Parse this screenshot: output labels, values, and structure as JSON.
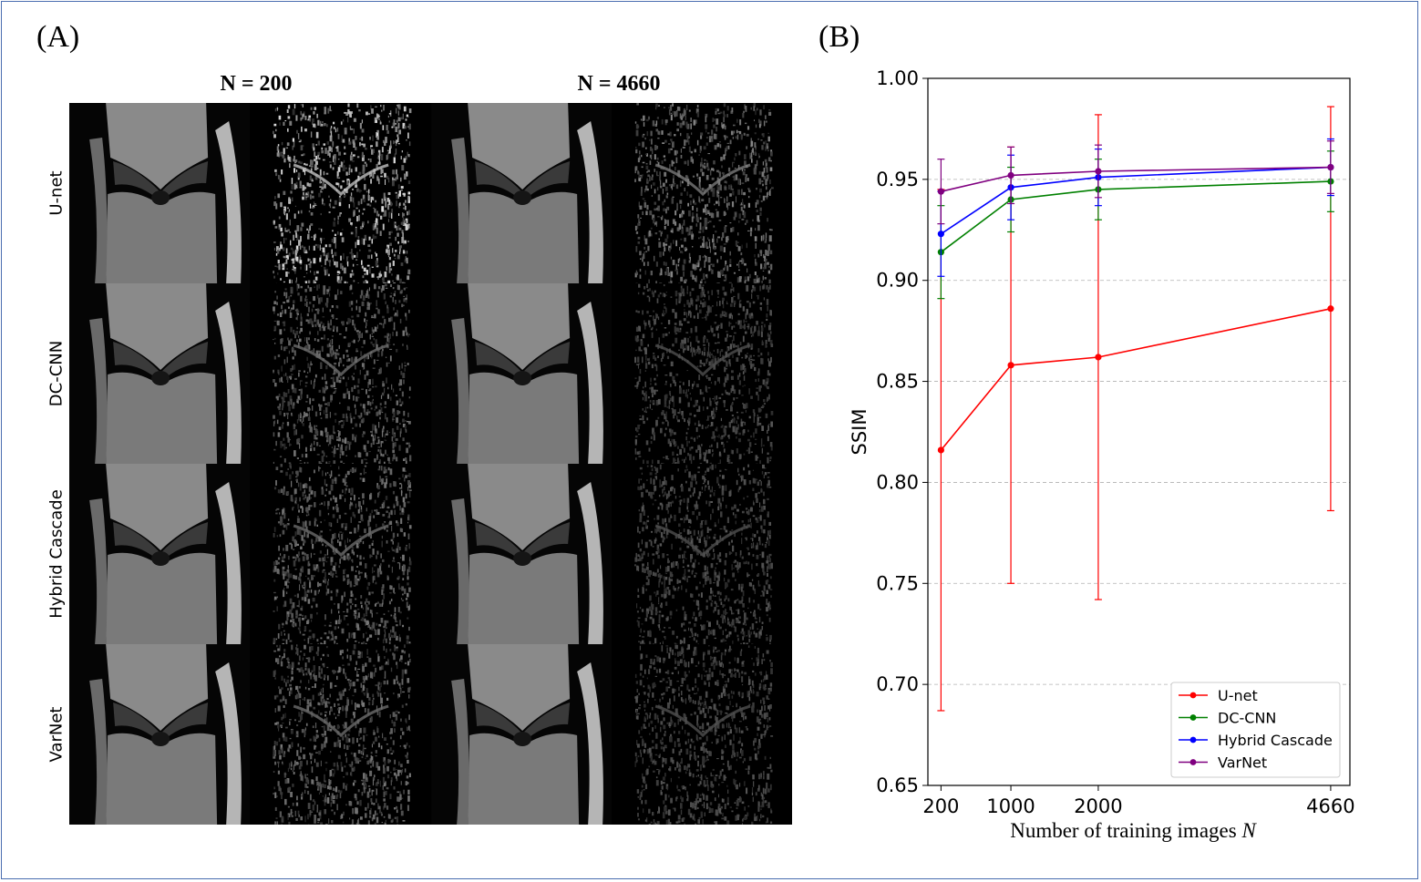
{
  "panel_a": {
    "label": "(A)",
    "col_headers": [
      "N = 200",
      "N = 4660"
    ],
    "row_labels": [
      "U-net",
      "DC-CNN",
      "Hybrid Cascade",
      "VarNet"
    ]
  },
  "panel_b": {
    "label": "(B)"
  },
  "chart_data": {
    "type": "line",
    "title": "",
    "xlabel": "Number of training images N",
    "ylabel": "SSIM",
    "x": [
      200,
      1000,
      2000,
      4660
    ],
    "xlim": [
      50,
      4880
    ],
    "ylim": [
      0.65,
      1.0
    ],
    "yticks": [
      0.65,
      0.7,
      0.75,
      0.8,
      0.85,
      0.9,
      0.95,
      1.0
    ],
    "ytick_labels": [
      "0.65",
      "0.70",
      "0.75",
      "0.80",
      "0.85",
      "0.90",
      "0.95",
      "1.00"
    ],
    "xtick_labels": [
      "200",
      "1000",
      "2000",
      "4660"
    ],
    "grid": "horizontal dashed",
    "legend_position": "bottom-right",
    "series": [
      {
        "name": "U-net",
        "color": "#ff0000",
        "values": [
          0.816,
          0.858,
          0.862,
          0.886
        ],
        "err_low": [
          0.687,
          0.75,
          0.742,
          0.786
        ],
        "err_high": [
          0.945,
          0.966,
          0.982,
          0.986
        ]
      },
      {
        "name": "DC-CNN",
        "color": "#008000",
        "values": [
          0.914,
          0.94,
          0.945,
          0.949
        ],
        "err_low": [
          0.891,
          0.924,
          0.93,
          0.934
        ],
        "err_high": [
          0.937,
          0.956,
          0.96,
          0.964
        ]
      },
      {
        "name": "Hybrid Cascade",
        "color": "#0000ff",
        "values": [
          0.923,
          0.946,
          0.951,
          0.956
        ],
        "err_low": [
          0.902,
          0.93,
          0.937,
          0.942
        ],
        "err_high": [
          0.944,
          0.962,
          0.965,
          0.97
        ]
      },
      {
        "name": "VarNet",
        "color": "#800080",
        "values": [
          0.944,
          0.952,
          0.954,
          0.956
        ],
        "err_low": [
          0.928,
          0.938,
          0.941,
          0.943
        ],
        "err_high": [
          0.96,
          0.966,
          0.967,
          0.969
        ]
      }
    ]
  }
}
